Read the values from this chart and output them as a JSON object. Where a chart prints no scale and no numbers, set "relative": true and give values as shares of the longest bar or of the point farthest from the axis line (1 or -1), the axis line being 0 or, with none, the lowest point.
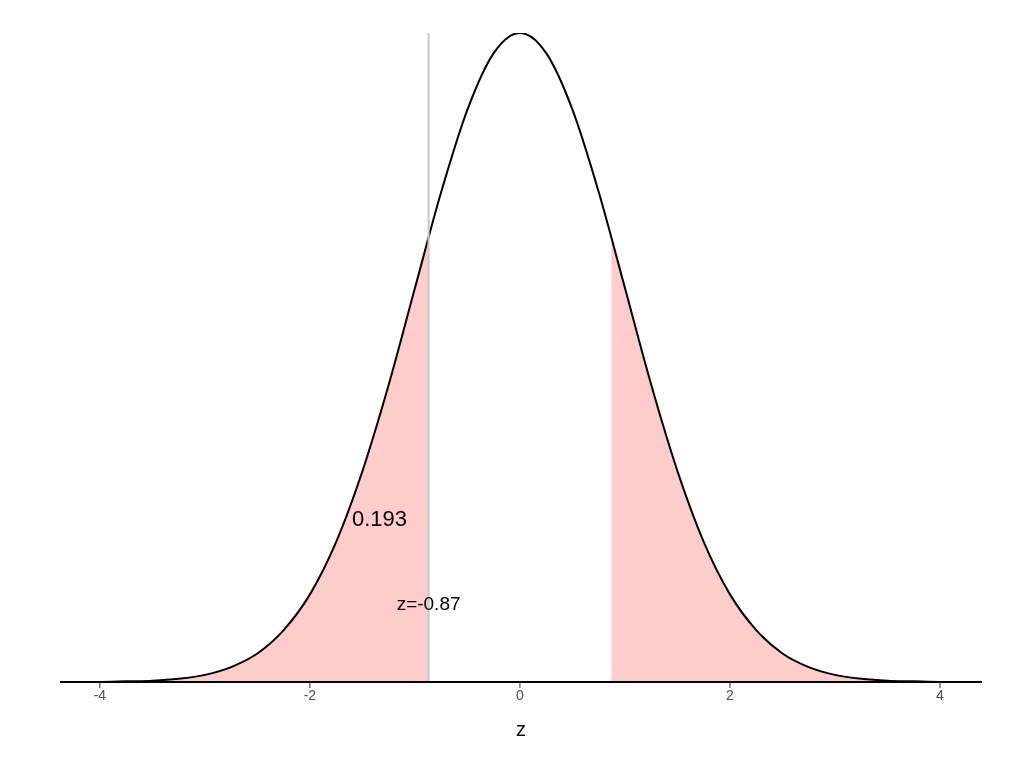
{
  "chart_data": {
    "type": "line",
    "relative": true,
    "xlabel": "z",
    "xlim": [
      -4.38,
      4.4
    ],
    "xticks": [
      -4,
      -2,
      0,
      2,
      4
    ],
    "marker": "none",
    "line_style": "solid",
    "series": [
      {
        "type": "area",
        "color": "#ffcccc",
        "x": [
          -4.25,
          -4,
          -3.75,
          -3.5,
          -3.25,
          -3,
          -2.75,
          -2.5,
          -2.25,
          -2,
          -1.75,
          -1.5,
          -1.25,
          -1,
          -0.87
        ],
        "values": [
          0,
          0,
          0.001,
          0.002,
          0.005,
          0.011,
          0.023,
          0.044,
          0.08,
          0.135,
          0.216,
          0.325,
          0.458,
          0.607,
          0.685
        ]
      },
      {
        "type": "area",
        "color": "#ffcccc",
        "x": [
          0.87,
          1,
          1.25,
          1.5,
          1.75,
          2,
          2.25,
          2.5,
          2.75,
          3,
          3.25,
          3.5,
          3.75,
          4,
          4.25
        ],
        "values": [
          0.685,
          0.607,
          0.458,
          0.325,
          0.216,
          0.135,
          0.08,
          0.044,
          0.023,
          0.011,
          0.005,
          0.002,
          0.001,
          0,
          0
        ]
      },
      {
        "type": "line",
        "color": "#000000",
        "x": [
          -4.25,
          -4,
          -3.75,
          -3.5,
          -3.25,
          -3,
          -2.75,
          -2.5,
          -2.25,
          -2,
          -1.75,
          -1.5,
          -1.25,
          -1,
          -0.75,
          -0.5,
          -0.25,
          0,
          0.25,
          0.5,
          0.75,
          1,
          1.25,
          1.5,
          1.75,
          2,
          2.25,
          2.5,
          2.75,
          3,
          3.25,
          3.5,
          3.75,
          4,
          4.25
        ],
        "values": [
          0,
          0,
          0.001,
          0.002,
          0.005,
          0.011,
          0.023,
          0.044,
          0.08,
          0.135,
          0.216,
          0.325,
          0.458,
          0.607,
          0.755,
          0.882,
          0.969,
          1,
          0.969,
          0.882,
          0.755,
          0.607,
          0.458,
          0.325,
          0.216,
          0.135,
          0.08,
          0.044,
          0.023,
          0.011,
          0.005,
          0.002,
          0.001,
          0,
          0
        ]
      }
    ],
    "ref_lines": [
      {
        "axis": "x",
        "value": -0.87,
        "label": "z=-0.87",
        "color": "#c8c8c8"
      }
    ],
    "annotations": [
      "0.193"
    ]
  }
}
